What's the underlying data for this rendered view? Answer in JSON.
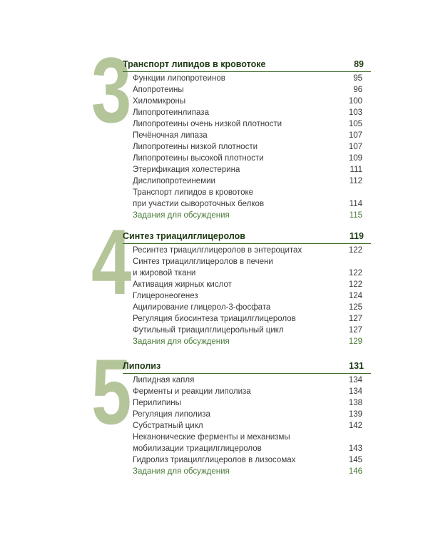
{
  "chapters": [
    {
      "number": "3",
      "title": "Транспорт липидов в кровотоке",
      "page": "89",
      "items": [
        {
          "label": "Функции липопротеинов",
          "page": "95"
        },
        {
          "label": "Апопротеины",
          "page": "96"
        },
        {
          "label": "Хиломикроны",
          "page": "100"
        },
        {
          "label": "Липопротеинлипаза",
          "page": "103"
        },
        {
          "label": "Липопротеины очень низкой плотности",
          "page": "105"
        },
        {
          "label": "Печёночная липаза",
          "page": "107"
        },
        {
          "label": "Липопротеины низкой плотности",
          "page": "107"
        },
        {
          "label": "Липопротеины высокой плотности",
          "page": "109"
        },
        {
          "label": "Этерификация холестерина",
          "page": "111"
        },
        {
          "label": "Дислипопротеинемии",
          "page": "112"
        },
        {
          "label": "Транспорт липидов в кровотоке",
          "page": ""
        },
        {
          "label": "при участии сывороточных белков",
          "page": "114"
        },
        {
          "label": "Задания для обсуждения",
          "page": "115"
        }
      ]
    },
    {
      "number": "4",
      "title": "Синтез триацилглицеролов",
      "page": "119",
      "items": [
        {
          "label": "Ресинтез триацилглицеролов в энтероцитах",
          "page": "122"
        },
        {
          "label": "Синтез триацилглицеролов в печени",
          "page": ""
        },
        {
          "label": "и жировой ткани",
          "page": "122"
        },
        {
          "label": "Активация жирных кислот",
          "page": "122"
        },
        {
          "label": "Глицеронеогенез",
          "page": "124"
        },
        {
          "label": "Ацилирование глицерол-3-фосфата",
          "page": "125"
        },
        {
          "label": "Регуляция биосинтеза триацилглицеролов",
          "page": "127"
        },
        {
          "label": "Футильный триацилглицерольный цикл",
          "page": "127"
        },
        {
          "label": "Задания для обсуждения",
          "page": "129"
        }
      ]
    },
    {
      "number": "5",
      "title": "Липолиз",
      "page": "131",
      "items": [
        {
          "label": "Липидная капля",
          "page": "134"
        },
        {
          "label": "Ферменты и реакции липолиза",
          "page": "134"
        },
        {
          "label": "Перилипины",
          "page": "138"
        },
        {
          "label": "Регуляция липолиза",
          "page": "139"
        },
        {
          "label": "Субстратный цикл",
          "page": "142"
        },
        {
          "label": "Неканонические ферменты и механизмы",
          "page": ""
        },
        {
          "label": "мобилизации триацилглицеролов",
          "page": "143"
        },
        {
          "label": "Гидролиз триацилглицеролов в лизосомах",
          "page": "145"
        },
        {
          "label": "Задания для обсуждения",
          "page": "146"
        }
      ]
    }
  ],
  "colors": {
    "numeral": "#b4c59a",
    "heading": "#1f3a14",
    "rule": "#3d6a2a",
    "discussion": "#4d7d3b",
    "text": "#3a3a3a"
  }
}
